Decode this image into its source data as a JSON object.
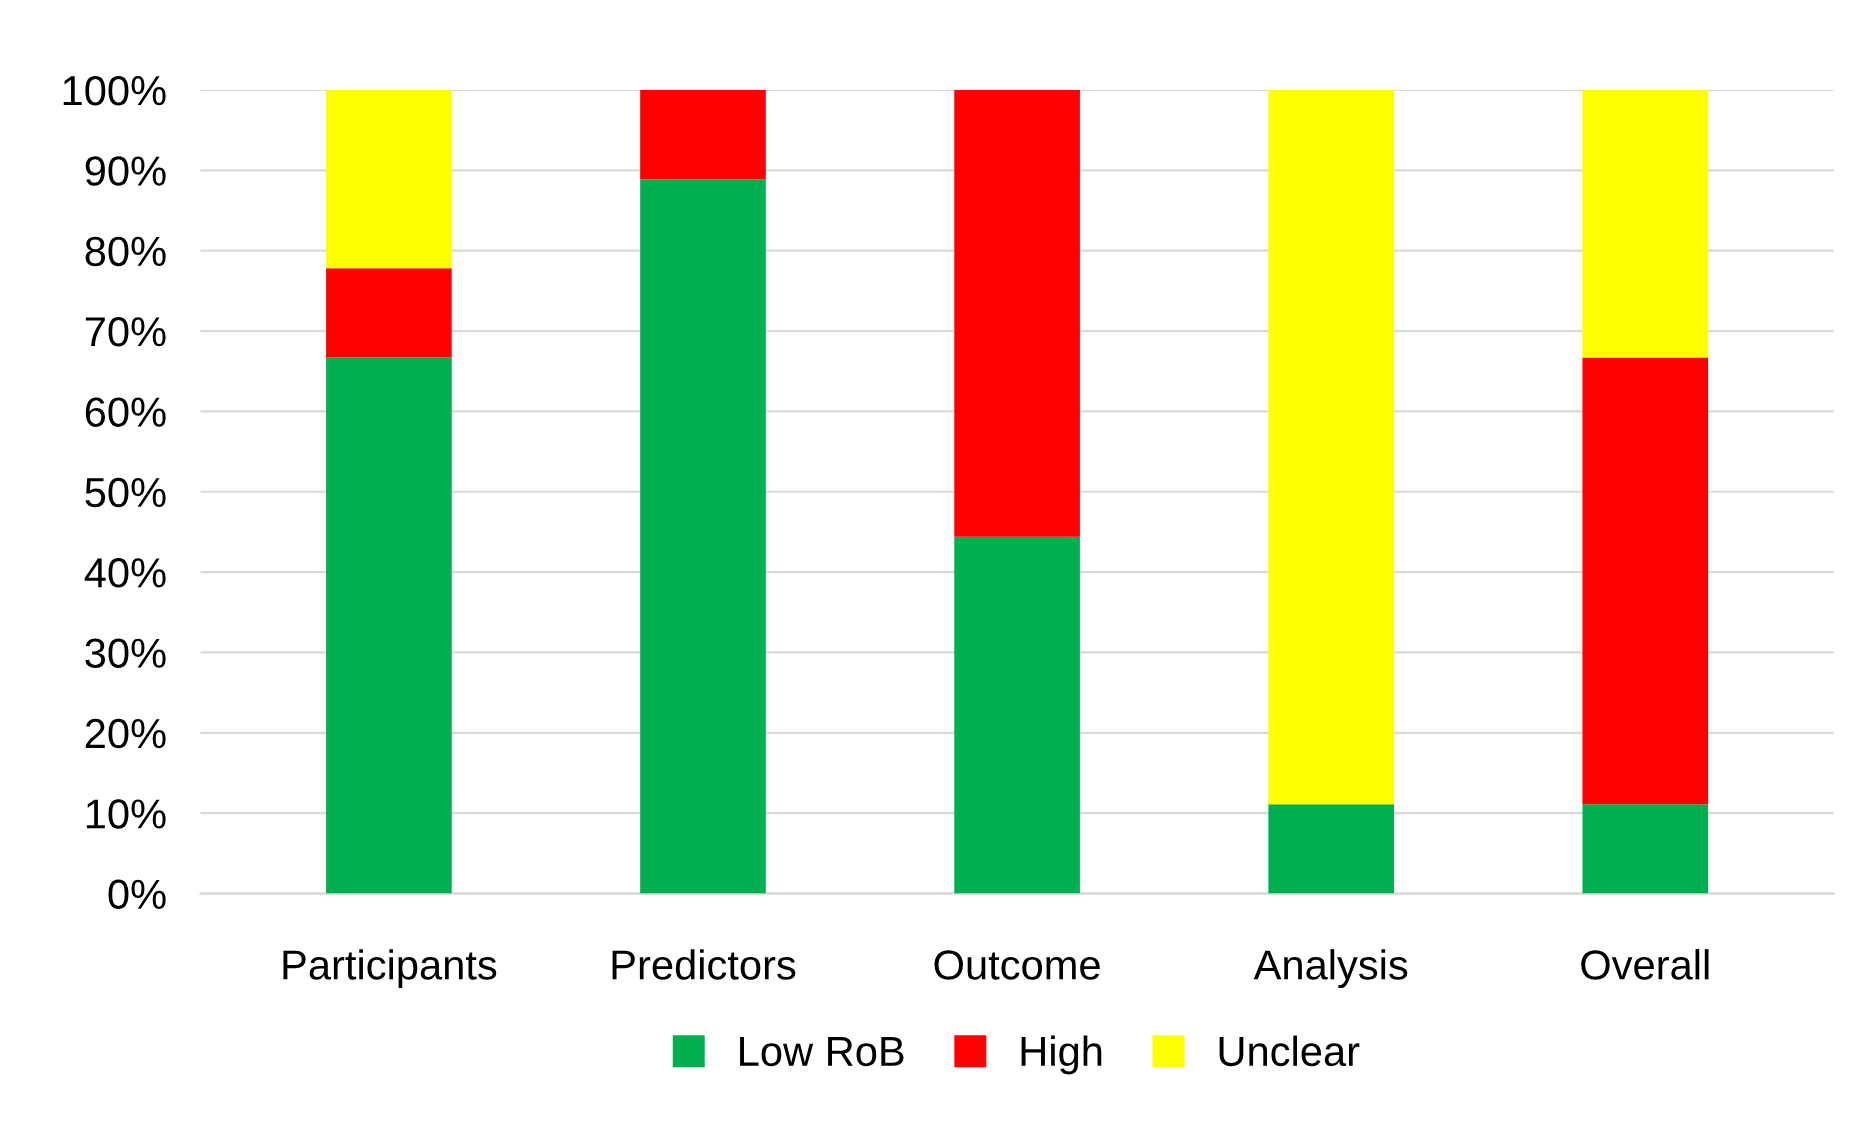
{
  "chart_data": {
    "type": "bar",
    "stacked": true,
    "categories": [
      "Participants",
      "Predictors",
      "Outcome",
      "Analysis",
      "Overall"
    ],
    "series": [
      {
        "name": "Low RoB",
        "color": "#00b050",
        "values": [
          66.7,
          88.9,
          44.4,
          11.1,
          11.1
        ]
      },
      {
        "name": "High",
        "color": "#ff0000",
        "values": [
          11.1,
          11.1,
          55.6,
          0,
          55.6
        ]
      },
      {
        "name": "Unclear",
        "color": "#ffff00",
        "values": [
          22.2,
          0,
          0,
          88.9,
          33.3
        ]
      }
    ],
    "ylim": [
      0,
      100
    ],
    "yticks": [
      {
        "value": 0,
        "label": "0%"
      },
      {
        "value": 10,
        "label": "10%"
      },
      {
        "value": 20,
        "label": "20%"
      },
      {
        "value": 30,
        "label": "30%"
      },
      {
        "value": 40,
        "label": "40%"
      },
      {
        "value": 50,
        "label": "50%"
      },
      {
        "value": 60,
        "label": "60%"
      },
      {
        "value": 70,
        "label": "70%"
      },
      {
        "value": 80,
        "label": "80%"
      },
      {
        "value": 90,
        "label": "90%"
      },
      {
        "value": 100,
        "label": "100%"
      }
    ],
    "grid": "y",
    "legend": "bottom"
  }
}
